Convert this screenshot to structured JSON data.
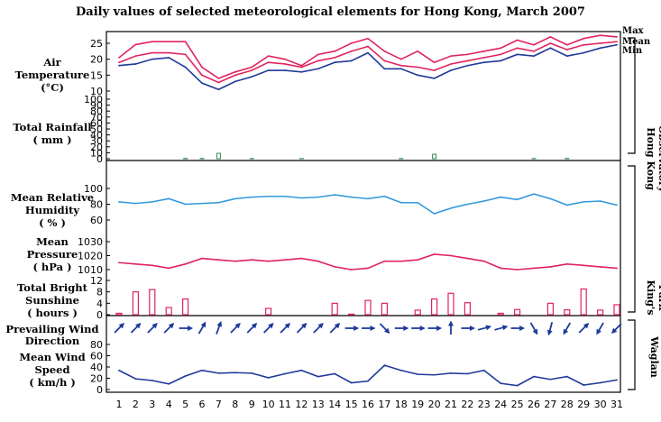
{
  "title": "Daily values of selected meteorological elements for Hong Kong, March 2007",
  "panel_labels": {
    "temperature": [
      "Air",
      "Temperature",
      "(°C)"
    ],
    "rainfall": [
      "Total Rainfall",
      "( mm )"
    ],
    "humidity": [
      "Mean Relative",
      "Humidity",
      "( % )"
    ],
    "pressure": [
      "Mean",
      "Pressure",
      "( hPa )"
    ],
    "sunshine": [
      "Total Bright",
      "Sunshine",
      "( hours )"
    ],
    "wind_direction": [
      "Prevailing Wind",
      "Direction"
    ],
    "wind_speed": [
      "Mean Wind",
      "Speed",
      "( km/h )"
    ]
  },
  "station_labels": {
    "hko": [
      "Hong Kong",
      "Observatory"
    ],
    "kp": [
      "King's",
      "Park"
    ],
    "waglan": [
      "Waglan",
      "Island"
    ]
  },
  "colors": {
    "max": "#e0245e",
    "mean": "#e0245e",
    "min": "#1f3a9a",
    "rainfall": "#2e8b57",
    "humidity": "#3399dd",
    "pressure": "#e0245e",
    "sunshine": "#e0245e",
    "wind": "#1f3a9a"
  },
  "chart_data": {
    "type": "line",
    "x": [
      1,
      2,
      3,
      4,
      5,
      6,
      7,
      8,
      9,
      10,
      11,
      12,
      13,
      14,
      15,
      16,
      17,
      18,
      19,
      20,
      21,
      22,
      23,
      24,
      25,
      26,
      27,
      28,
      29,
      30,
      31
    ],
    "temperature": {
      "ylim": [
        10,
        25
      ],
      "yticks": [
        10,
        15,
        20,
        25
      ],
      "series": [
        {
          "name": "Max",
          "values": [
            20.5,
            24.6,
            25.5,
            25.5,
            25.5,
            17.5,
            14,
            16,
            17.5,
            21,
            20,
            18,
            21.5,
            22.5,
            25,
            26.5,
            22.5,
            20,
            22.5,
            19,
            21,
            21.5,
            22.5,
            23.5,
            26,
            24.5,
            27,
            24.5,
            26.5,
            27.5,
            27
          ]
        },
        {
          "name": "Mean",
          "values": [
            19,
            21,
            22,
            22,
            21.5,
            15,
            12.7,
            15,
            16.5,
            19,
            18.5,
            17.5,
            19.5,
            20.5,
            22.5,
            24,
            19.5,
            18,
            17.5,
            16.5,
            18.5,
            19.5,
            20.5,
            21.5,
            23.5,
            22.5,
            25,
            23,
            24.5,
            25,
            25.5
          ]
        },
        {
          "name": "Min",
          "values": [
            18,
            18.5,
            20,
            20.5,
            17.5,
            12.5,
            10.5,
            13,
            14.5,
            16.5,
            16.5,
            16,
            17,
            19,
            19.5,
            22,
            17,
            17,
            15,
            14,
            16.5,
            18,
            19,
            19.5,
            21.5,
            21,
            23.5,
            21,
            22,
            23.5,
            24.5
          ]
        }
      ]
    },
    "rainfall": {
      "ylim": [
        0,
        100
      ],
      "yticks": [
        0,
        10,
        20,
        30,
        40,
        50,
        60,
        70,
        80,
        90,
        100
      ],
      "values": [
        0,
        0,
        0,
        0,
        0.5,
        0.5,
        9,
        0,
        0.3,
        0,
        0,
        0.3,
        0,
        0,
        0,
        0,
        0,
        0.3,
        0,
        7.5,
        0,
        0,
        0,
        0,
        0,
        0.3,
        0,
        0.5,
        0,
        0,
        0
      ]
    },
    "humidity": {
      "ylim": [
        60,
        100
      ],
      "yticks": [
        60,
        80,
        100
      ],
      "values": [
        83,
        81,
        83,
        87,
        80,
        81,
        82,
        87,
        89,
        90,
        90,
        88,
        89,
        92,
        89,
        87,
        90,
        82,
        82,
        68,
        75,
        80,
        84,
        89,
        86,
        93,
        87,
        79,
        83,
        84,
        79
      ]
    },
    "pressure": {
      "ylim": [
        1010,
        1030
      ],
      "yticks": [
        1010,
        1020,
        1030
      ],
      "values": [
        1015,
        1014,
        1013,
        1011,
        1014,
        1018,
        1017,
        1016,
        1017,
        1016,
        1017,
        1018,
        1016,
        1012,
        1010,
        1011,
        1016,
        1016,
        1017,
        1021,
        1020,
        1018,
        1016,
        1011,
        1010,
        1011,
        1012,
        1014,
        1013,
        1012,
        1011
      ]
    },
    "sunshine": {
      "ylim": [
        0,
        12
      ],
      "yticks": [
        0,
        4,
        8,
        12
      ],
      "values": [
        0.5,
        8,
        8.8,
        2.5,
        5.5,
        0,
        0,
        0,
        0,
        2.2,
        0,
        0,
        0,
        4,
        0.2,
        5,
        4,
        0,
        1.6,
        5.5,
        7.5,
        4.2,
        0,
        0.5,
        1.8,
        0,
        4,
        1.7,
        9,
        1.6,
        3.5
      ]
    },
    "wind_direction": {
      "angles_deg_from_north": [
        225,
        225,
        225,
        225,
        270,
        210,
        200,
        225,
        225,
        225,
        225,
        225,
        225,
        225,
        270,
        270,
        315,
        270,
        270,
        270,
        180,
        270,
        255,
        255,
        270,
        330,
        15,
        30,
        225,
        30,
        45
      ]
    },
    "wind_speed": {
      "ylim": [
        0,
        80
      ],
      "yticks": [
        0,
        20,
        40,
        60,
        80
      ],
      "values": [
        34,
        19,
        16,
        10,
        24,
        34,
        29,
        30,
        29,
        21,
        28,
        34,
        23,
        28,
        12,
        15,
        43,
        34,
        27,
        26,
        29,
        28,
        34,
        11,
        7,
        23,
        18,
        23,
        8,
        12,
        17
      ]
    },
    "xlabel": "",
    "ylabel": ""
  }
}
